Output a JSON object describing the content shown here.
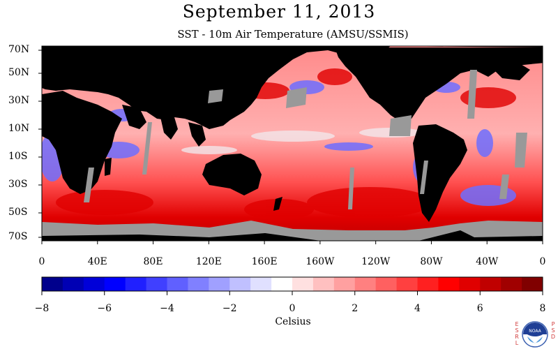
{
  "title": "September 11, 2013",
  "subtitle": "SST - 10m Air Temperature (AMSU/SSMIS)",
  "map": {
    "lat_labels": [
      "70N",
      "50N",
      "30N",
      "10N",
      "10S",
      "30S",
      "50S",
      "70S"
    ],
    "lon_labels": [
      "0",
      "40E",
      "80E",
      "120E",
      "160E",
      "160W",
      "120W",
      "80W",
      "40W",
      "0"
    ],
    "colors": {
      "land": "#000000",
      "missing": "#999999",
      "warm": "#e8101a",
      "cool": "#3c3cff"
    }
  },
  "colorbar": {
    "min": -8,
    "max": 8,
    "unit": "Celsius",
    "tick_labels": [
      "−8",
      "−6",
      "−4",
      "−2",
      "0",
      "2",
      "4",
      "6",
      "8"
    ],
    "colors": [
      "#00008c",
      "#0000b4",
      "#0000d9",
      "#0000ff",
      "#2020ff",
      "#4040ff",
      "#6060ff",
      "#8080ff",
      "#a0a0ff",
      "#c0c0ff",
      "#e0e0ff",
      "#ffffff",
      "#ffe0e0",
      "#ffc0c0",
      "#ffa0a0",
      "#ff8080",
      "#ff6060",
      "#ff4040",
      "#ff2020",
      "#ff0000",
      "#e00000",
      "#c00000",
      "#a00000",
      "#800000"
    ]
  },
  "logo": {
    "left_letters": [
      "E",
      "S",
      "R",
      "L"
    ],
    "right_letters": [
      "P",
      "S",
      "D"
    ],
    "emblem": "NOAA"
  }
}
